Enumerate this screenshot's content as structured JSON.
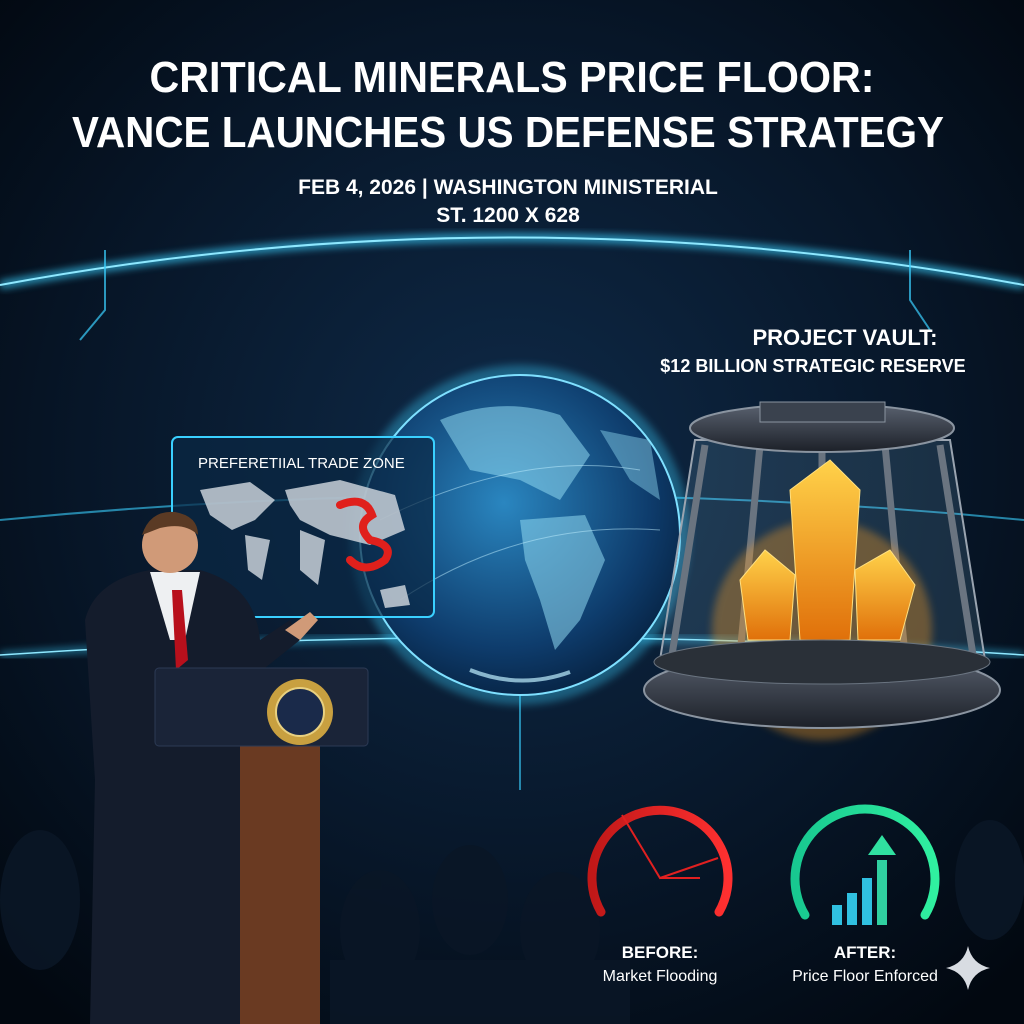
{
  "header": {
    "title_lines": [
      "CRITICAL MINERALS PRICE FLOOR:",
      "VANCE LAUNCHES US DEFENSE STRATEGY"
    ],
    "subtitle": "FEB 4, 2026 | WASHINGTON MINISTERIAL",
    "dimensions": "ST. 1200 X 628"
  },
  "map_panel": {
    "label": "PREFERETIIAL TRADE ZONE"
  },
  "vault": {
    "title": "PROJECT VAULT:",
    "subtitle": "$12 BILLION STRATEGIC RESERVE"
  },
  "gauges": [
    {
      "label": "BEFORE:",
      "caption": "Market Flooding"
    },
    {
      "label": "AFTER:",
      "caption": "Price Floor Enforced"
    }
  ]
}
